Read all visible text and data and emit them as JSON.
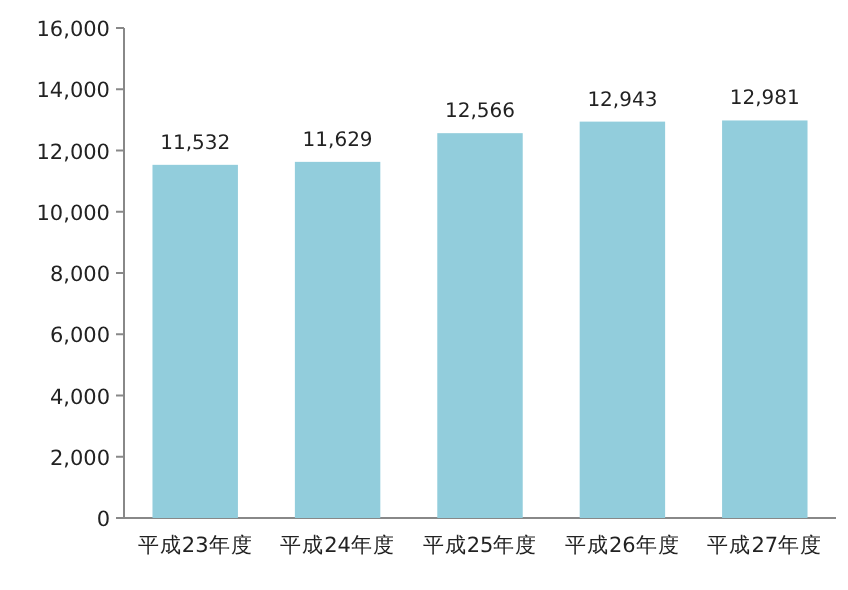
{
  "chart_data": {
    "type": "bar",
    "categories": [
      "平成23年度",
      "平成24年度",
      "平成25年度",
      "平成26年度",
      "平成27年度"
    ],
    "values": [
      11532,
      11629,
      12566,
      12943,
      12981
    ],
    "value_labels": [
      "11,532",
      "11,629",
      "12,566",
      "12,943",
      "12,981"
    ],
    "color": "#92cddc",
    "ylim": [
      0,
      16000
    ],
    "yticks": [
      0,
      {
        "value": 2000,
        "label": "2,000"
      },
      {
        "value": 4000,
        "label": "4,000"
      },
      {
        "value": 6000,
        "label": "6,000"
      },
      {
        "value": 8000,
        "label": "8,000"
      },
      {
        "value": 10000,
        "label": "10,000"
      },
      {
        "value": 12000,
        "label": "12,000"
      },
      {
        "value": 14000,
        "label": "14,000"
      },
      {
        "value": 16000,
        "label": "16,000"
      }
    ]
  }
}
